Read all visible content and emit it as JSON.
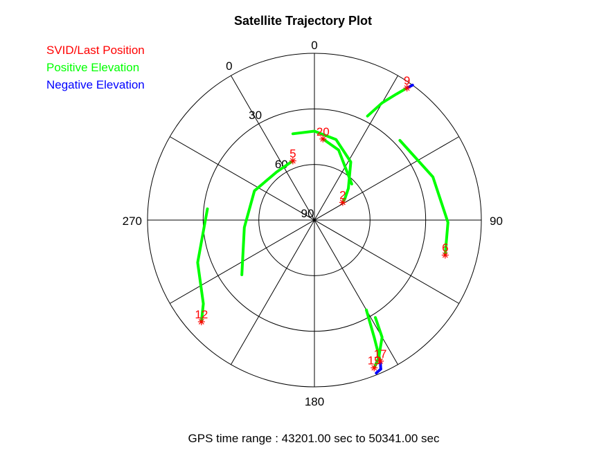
{
  "title": "Satellite Trajectory Plot",
  "legend": [
    {
      "label": "SVID/Last Position",
      "color": "#ff0000"
    },
    {
      "label": "Positive Elevation",
      "color": "#00ff00"
    },
    {
      "label": "Negative Elevation",
      "color": "#0000ff"
    }
  ],
  "footer": "GPS time range : 43201.00 sec to 50341.00 sec",
  "chart_data": {
    "type": "polar",
    "azimuth_ticks": [
      {
        "label": "0",
        "az": 0
      },
      {
        "label": "90",
        "az": 90
      },
      {
        "label": "180",
        "az": 180
      },
      {
        "label": "270",
        "az": 270
      }
    ],
    "elevation_rings": [
      0,
      30,
      60,
      90
    ],
    "elevation_labels": [
      "0",
      "30",
      "60",
      "90"
    ],
    "spoke_step_deg": 30,
    "satellites": [
      {
        "svid": "9",
        "last": {
          "az": 35,
          "el": 3
        },
        "positive": [
          {
            "az": 27,
            "el": 27
          },
          {
            "az": 30,
            "el": 17
          },
          {
            "az": 33,
            "el": 9
          },
          {
            "az": 35,
            "el": 3
          }
        ],
        "negative": [
          {
            "az": 35,
            "el": 3
          },
          {
            "az": 36,
            "el": 0
          }
        ]
      },
      {
        "svid": "20",
        "last": {
          "az": 6,
          "el": 46
        },
        "positive": [
          {
            "az": 46,
            "el": 62
          },
          {
            "az": 19,
            "el": 50
          },
          {
            "az": 6,
            "el": 46
          }
        ]
      },
      {
        "svid": "2",
        "last": {
          "az": 58,
          "el": 72
        },
        "positive": [
          {
            "az": 346,
            "el": 42
          },
          {
            "az": 0,
            "el": 42
          },
          {
            "az": 15,
            "el": 45
          },
          {
            "az": 32,
            "el": 53
          },
          {
            "az": 47,
            "el": 65
          },
          {
            "az": 55,
            "el": 70
          },
          {
            "az": 58,
            "el": 72
          }
        ]
      },
      {
        "svid": "5",
        "last": {
          "az": 340,
          "el": 56
        },
        "positive": [
          {
            "az": 233,
            "el": 41
          },
          {
            "az": 264,
            "el": 52
          },
          {
            "az": 296,
            "el": 54
          },
          {
            "az": 322,
            "el": 57
          },
          {
            "az": 340,
            "el": 56
          }
        ]
      },
      {
        "svid": "6",
        "last": {
          "az": 105,
          "el": 17
        },
        "positive": [
          {
            "az": 47,
            "el": 27
          },
          {
            "az": 70,
            "el": 22
          },
          {
            "az": 91,
            "el": 18
          },
          {
            "az": 105,
            "el": 17
          }
        ]
      },
      {
        "svid": "12",
        "last": {
          "az": 228,
          "el": 8
        },
        "positive": [
          {
            "az": 276,
            "el": 32
          },
          {
            "az": 250,
            "el": 23
          },
          {
            "az": 233,
            "el": 15
          },
          {
            "az": 228,
            "el": 8
          }
        ]
      },
      {
        "svid": "17",
        "last": {
          "az": 155,
          "el": 6
        },
        "positive": [
          {
            "az": 150,
            "el": 34
          },
          {
            "az": 153,
            "el": 19
          },
          {
            "az": 155,
            "el": 6
          }
        ],
        "negative": [
          {
            "az": 155,
            "el": 6
          },
          {
            "az": 156,
            "el": 2
          }
        ]
      },
      {
        "svid": "19",
        "last": {
          "az": 158,
          "el": 4
        },
        "positive": [
          {
            "az": 158,
            "el": 4
          },
          {
            "az": 155,
            "el": 8
          },
          {
            "az": 150,
            "el": 17
          },
          {
            "az": 148,
            "el": 28
          }
        ],
        "negative": [
          {
            "az": 156,
            "el": 2
          },
          {
            "az": 158,
            "el": 1
          }
        ]
      }
    ]
  }
}
